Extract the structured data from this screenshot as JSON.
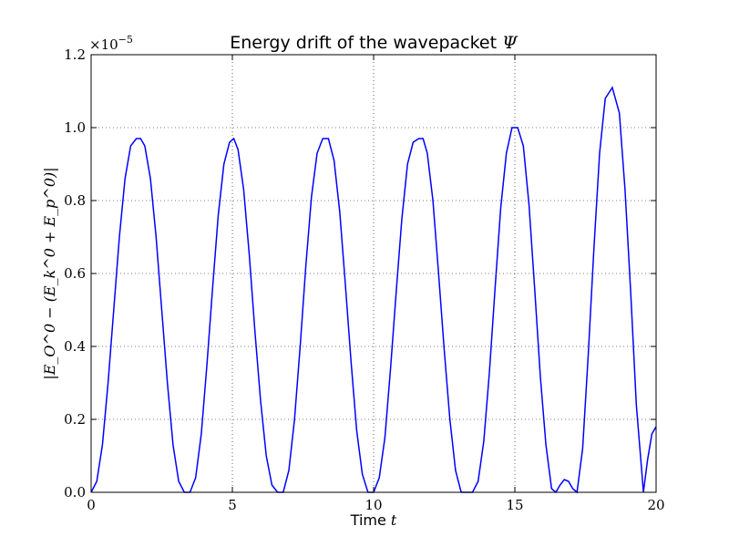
{
  "chart_data": {
    "type": "line",
    "title": "Energy drift of the wavepacket",
    "title_symbol": "Ψ",
    "xlabel": "Time",
    "xlabel_symbol": "t",
    "ylabel": "|E_O^0 − (E_k^0 + E_p^0)|",
    "y_offset_text": "×10",
    "y_offset_exponent": "−5",
    "xlim": [
      0,
      20
    ],
    "ylim": [
      0,
      1.2
    ],
    "grid": true,
    "x_ticks": [
      0,
      5,
      10,
      15,
      20
    ],
    "x_tick_labels": [
      "0",
      "5",
      "10",
      "15",
      "20"
    ],
    "y_ticks": [
      0,
      0.2,
      0.4,
      0.6,
      0.8,
      1.0,
      1.2
    ],
    "y_tick_labels": [
      "0.0",
      "0.2",
      "0.4",
      "0.6",
      "0.8",
      "1.0",
      "1.2"
    ],
    "line_color": "#0000ff",
    "series": [
      {
        "color": "#0000ff",
        "x": [
          0,
          0.2,
          0.4,
          0.6,
          0.8,
          1.0,
          1.2,
          1.4,
          1.6,
          1.75,
          1.9,
          2.1,
          2.3,
          2.5,
          2.7,
          2.9,
          3.1,
          3.3,
          3.5,
          3.7,
          3.9,
          4.1,
          4.3,
          4.5,
          4.7,
          4.9,
          5.05,
          5.2,
          5.4,
          5.6,
          5.8,
          6.0,
          6.2,
          6.4,
          6.6,
          6.8,
          7.0,
          7.2,
          7.4,
          7.6,
          7.8,
          8.0,
          8.2,
          8.4,
          8.6,
          8.8,
          9.0,
          9.2,
          9.4,
          9.6,
          9.8,
          10.0,
          10.2,
          10.4,
          10.6,
          10.8,
          11.0,
          11.2,
          11.4,
          11.6,
          11.75,
          11.9,
          12.1,
          12.3,
          12.5,
          12.7,
          12.9,
          13.1,
          13.3,
          13.5,
          13.7,
          13.9,
          14.1,
          14.3,
          14.5,
          14.7,
          14.9,
          15.1,
          15.3,
          15.5,
          15.7,
          15.9,
          16.1,
          16.3,
          16.45,
          16.6,
          16.75,
          16.9,
          17.05,
          17.2,
          17.4,
          17.6,
          17.8,
          18.0,
          18.2,
          18.45,
          18.7,
          18.9,
          19.1,
          19.3,
          19.5,
          19.55,
          19.7,
          19.85,
          20.0
        ],
        "y": [
          0.0,
          0.03,
          0.13,
          0.3,
          0.5,
          0.7,
          0.86,
          0.95,
          0.97,
          0.97,
          0.95,
          0.86,
          0.7,
          0.5,
          0.3,
          0.13,
          0.03,
          0.0,
          0.0,
          0.04,
          0.16,
          0.35,
          0.56,
          0.76,
          0.9,
          0.96,
          0.97,
          0.94,
          0.83,
          0.65,
          0.44,
          0.25,
          0.1,
          0.02,
          0.0,
          0.0,
          0.06,
          0.2,
          0.4,
          0.62,
          0.81,
          0.93,
          0.97,
          0.97,
          0.91,
          0.77,
          0.57,
          0.36,
          0.17,
          0.05,
          0.0,
          0.0,
          0.04,
          0.15,
          0.34,
          0.55,
          0.75,
          0.9,
          0.96,
          0.97,
          0.97,
          0.93,
          0.8,
          0.6,
          0.39,
          0.2,
          0.06,
          0.0,
          0.0,
          0.0,
          0.03,
          0.14,
          0.33,
          0.56,
          0.78,
          0.93,
          1.0,
          1.0,
          0.95,
          0.79,
          0.56,
          0.32,
          0.13,
          0.01,
          0.0,
          0.02,
          0.035,
          0.03,
          0.01,
          0.0,
          0.12,
          0.38,
          0.67,
          0.93,
          1.08,
          1.11,
          1.04,
          0.83,
          0.55,
          0.24,
          0.05,
          0.0,
          0.09,
          0.16,
          0.18
        ]
      }
    ]
  }
}
